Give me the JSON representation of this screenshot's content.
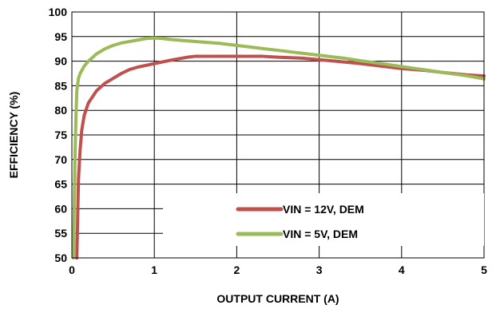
{
  "chart_data": {
    "type": "line",
    "title": "",
    "xlabel": "OUTPUT CURRENT (A)",
    "ylabel": "EFFICIENCY (%)",
    "xlim": [
      0,
      5
    ],
    "ylim": [
      50,
      100
    ],
    "x_ticks": [
      "0",
      "1",
      "2",
      "3",
      "4",
      "5"
    ],
    "y_ticks": [
      "50",
      "55",
      "60",
      "65",
      "70",
      "75",
      "80",
      "85",
      "90",
      "95",
      "100"
    ],
    "grid": "horizontal and vertical gridlines",
    "legend_position": "bottom-right",
    "series": [
      {
        "name": "VIN = 12V, DEM",
        "color": "#C0504D",
        "x": [
          0.06,
          0.07,
          0.08,
          0.1,
          0.12,
          0.15,
          0.2,
          0.3,
          0.4,
          0.5,
          0.6,
          0.7,
          0.8,
          1.0,
          1.2,
          1.4,
          1.5,
          1.7,
          2.0,
          2.3,
          2.5,
          2.8,
          3.0,
          3.2,
          3.5,
          3.8,
          4.0,
          4.3,
          4.5,
          4.8,
          5.0
        ],
        "y": [
          50.0,
          58.0,
          66.0,
          72.0,
          76.0,
          79.0,
          81.5,
          84.0,
          85.5,
          86.5,
          87.5,
          88.3,
          88.8,
          89.5,
          90.2,
          90.8,
          91.0,
          91.0,
          91.0,
          91.0,
          90.8,
          90.6,
          90.3,
          90.0,
          89.5,
          88.9,
          88.5,
          88.1,
          87.7,
          87.2,
          87.0
        ]
      },
      {
        "name": "VIN = 5V, DEM",
        "color": "#9BBB59",
        "x": [
          0.02,
          0.03,
          0.04,
          0.05,
          0.06,
          0.08,
          0.1,
          0.15,
          0.2,
          0.3,
          0.4,
          0.5,
          0.6,
          0.7,
          0.8,
          0.9,
          1.0,
          1.1,
          1.2,
          1.5,
          1.8,
          2.0,
          2.3,
          2.5,
          2.8,
          3.0,
          3.3,
          3.5,
          3.8,
          4.0,
          4.3,
          4.5,
          4.8,
          5.0
        ],
        "y": [
          50.0,
          62.0,
          72.0,
          79.0,
          84.0,
          86.5,
          87.5,
          89.0,
          90.0,
          91.5,
          92.5,
          93.2,
          93.7,
          94.0,
          94.3,
          94.6,
          94.7,
          94.6,
          94.4,
          94.0,
          93.6,
          93.2,
          92.6,
          92.2,
          91.6,
          91.2,
          90.6,
          90.1,
          89.4,
          88.9,
          88.2,
          87.7,
          87.0,
          86.4
        ]
      }
    ]
  }
}
